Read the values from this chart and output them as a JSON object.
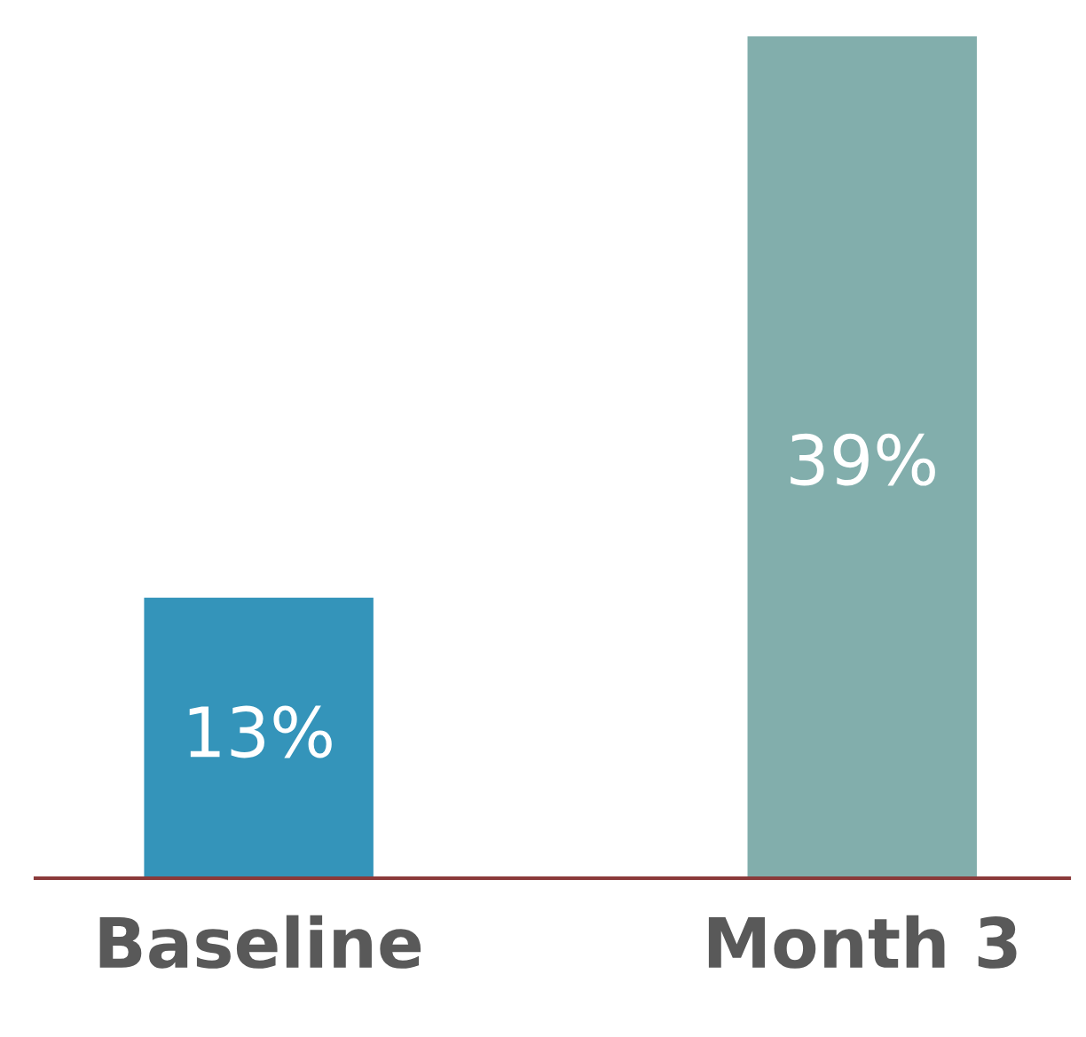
{
  "chart_data": {
    "type": "bar",
    "categories": [
      "Baseline",
      "Month 3"
    ],
    "values": [
      13,
      39
    ],
    "colors": [
      "#3494ba",
      "#82aeac"
    ],
    "value_labels": [
      "13%",
      "39%"
    ],
    "grid": false,
    "legend": false
  }
}
